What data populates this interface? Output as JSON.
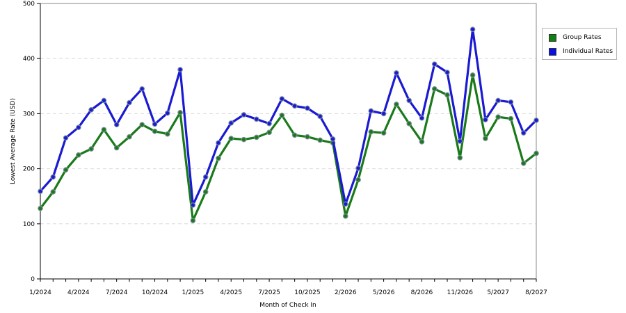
{
  "chart_data": {
    "type": "line",
    "title": "",
    "xlabel": "Month of Check In",
    "ylabel": "Lowest Average Rate (USD)",
    "ylim": [
      0,
      500
    ],
    "yticks": [
      0,
      100,
      200,
      300,
      400,
      500
    ],
    "grid": true,
    "legend_position": "right",
    "x": [
      "1/2024",
      "2/2024",
      "3/2024",
      "4/2024",
      "5/2024",
      "6/2024",
      "7/2024",
      "8/2024",
      "9/2024",
      "10/2024",
      "11/2024",
      "12/2024",
      "1/2025",
      "2/2025",
      "3/2025",
      "4/2025",
      "5/2025",
      "6/2025",
      "7/2025",
      "8/2025",
      "9/2025",
      "10/2025",
      "11/2025",
      "12/2025",
      "2/2026",
      "3/2026",
      "4/2026",
      "5/2026",
      "6/2026",
      "7/2026",
      "8/2026",
      "9/2026",
      "10/2026",
      "11/2026",
      "12/2026",
      "4/2027",
      "5/2027",
      "6/2027",
      "7/2027",
      "8/2027"
    ],
    "x_tick_labels": [
      "1/2024",
      "4/2024",
      "7/2024",
      "10/2024",
      "1/2025",
      "4/2025",
      "7/2025",
      "10/2025",
      "2/2026",
      "5/2026",
      "8/2026",
      "11/2026",
      "5/2027",
      "8/2027"
    ],
    "x_tick_index": [
      0,
      3,
      6,
      9,
      12,
      15,
      18,
      21,
      24,
      27,
      30,
      33,
      36,
      39
    ],
    "series": [
      {
        "name": "Group Rates",
        "color": "#1a7a1a",
        "legend_color": "#108010",
        "values": [
          128,
          158,
          198,
          225,
          236,
          271,
          238,
          258,
          280,
          268,
          263,
          302,
          106,
          158,
          219,
          255,
          253,
          257,
          266,
          297,
          261,
          258,
          252,
          247,
          114,
          180,
          267,
          265,
          317,
          282,
          249,
          345,
          334,
          220,
          370,
          255,
          294,
          291,
          210,
          228
        ]
      },
      {
        "name": "Individual Rates",
        "color": "#1a1ad2",
        "legend_color": "#0a10e0",
        "values": [
          159,
          185,
          256,
          275,
          307,
          324,
          280,
          320,
          345,
          281,
          301,
          380,
          134,
          185,
          247,
          283,
          298,
          290,
          282,
          327,
          314,
          310,
          295,
          254,
          136,
          201,
          305,
          300,
          374,
          324,
          292,
          390,
          375,
          250,
          453,
          289,
          324,
          321,
          265,
          288
        ]
      }
    ]
  }
}
